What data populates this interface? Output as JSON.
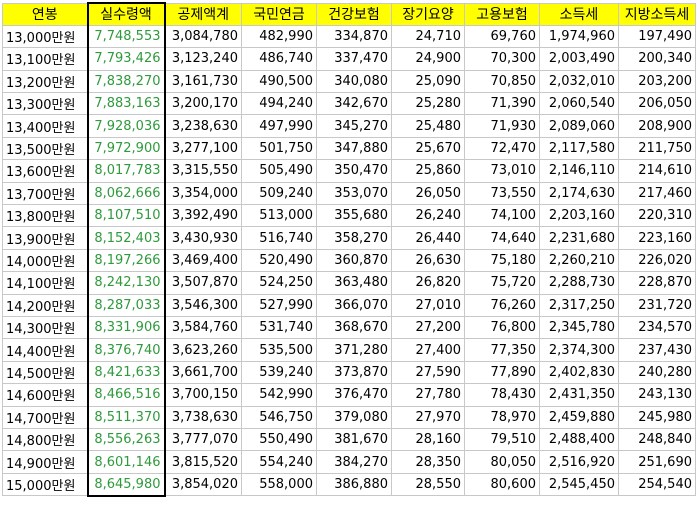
{
  "colors": {
    "header_fill": "#ffff00",
    "net_pay_text": "#2e9a3c",
    "grid_line": "#c8c8c8",
    "net_pay_border": "#000000"
  },
  "headers": [
    "연봉",
    "실수령액",
    "공제액계",
    "국민연금",
    "건강보험",
    "장기요양",
    "고용보험",
    "소득세",
    "지방소득세"
  ],
  "rows": [
    [
      "13,000만원",
      "7,748,553",
      "3,084,780",
      "482,990",
      "334,870",
      "24,710",
      "69,760",
      "1,974,960",
      "197,490"
    ],
    [
      "13,100만원",
      "7,793,426",
      "3,123,240",
      "486,740",
      "337,470",
      "24,900",
      "70,300",
      "2,003,490",
      "200,340"
    ],
    [
      "13,200만원",
      "7,838,270",
      "3,161,730",
      "490,500",
      "340,080",
      "25,090",
      "70,850",
      "2,032,010",
      "203,200"
    ],
    [
      "13,300만원",
      "7,883,163",
      "3,200,170",
      "494,240",
      "342,670",
      "25,280",
      "71,390",
      "2,060,540",
      "206,050"
    ],
    [
      "13,400만원",
      "7,928,036",
      "3,238,630",
      "497,990",
      "345,270",
      "25,480",
      "71,930",
      "2,089,060",
      "208,900"
    ],
    [
      "13,500만원",
      "7,972,900",
      "3,277,100",
      "501,750",
      "347,880",
      "25,670",
      "72,470",
      "2,117,580",
      "211,750"
    ],
    [
      "13,600만원",
      "8,017,783",
      "3,315,550",
      "505,490",
      "350,470",
      "25,860",
      "73,010",
      "2,146,110",
      "214,610"
    ],
    [
      "13,700만원",
      "8,062,666",
      "3,354,000",
      "509,240",
      "353,070",
      "26,050",
      "73,550",
      "2,174,630",
      "217,460"
    ],
    [
      "13,800만원",
      "8,107,510",
      "3,392,490",
      "513,000",
      "355,680",
      "26,240",
      "74,100",
      "2,203,160",
      "220,310"
    ],
    [
      "13,900만원",
      "8,152,403",
      "3,430,930",
      "516,740",
      "358,270",
      "26,440",
      "74,640",
      "2,231,680",
      "223,160"
    ],
    [
      "14,000만원",
      "8,197,266",
      "3,469,400",
      "520,490",
      "360,870",
      "26,630",
      "75,180",
      "2,260,210",
      "226,020"
    ],
    [
      "14,100만원",
      "8,242,130",
      "3,507,870",
      "524,250",
      "363,480",
      "26,820",
      "75,720",
      "2,288,730",
      "228,870"
    ],
    [
      "14,200만원",
      "8,287,033",
      "3,546,300",
      "527,990",
      "366,070",
      "27,010",
      "76,260",
      "2,317,250",
      "231,720"
    ],
    [
      "14,300만원",
      "8,331,906",
      "3,584,760",
      "531,740",
      "368,670",
      "27,200",
      "76,800",
      "2,345,780",
      "234,570"
    ],
    [
      "14,400만원",
      "8,376,740",
      "3,623,260",
      "535,500",
      "371,280",
      "27,400",
      "77,350",
      "2,374,300",
      "237,430"
    ],
    [
      "14,500만원",
      "8,421,633",
      "3,661,700",
      "539,240",
      "373,870",
      "27,590",
      "77,890",
      "2,402,830",
      "240,280"
    ],
    [
      "14,600만원",
      "8,466,516",
      "3,700,150",
      "542,990",
      "376,470",
      "27,780",
      "78,430",
      "2,431,350",
      "243,130"
    ],
    [
      "14,700만원",
      "8,511,370",
      "3,738,630",
      "546,750",
      "379,080",
      "27,970",
      "78,970",
      "2,459,880",
      "245,980"
    ],
    [
      "14,800만원",
      "8,556,263",
      "3,777,070",
      "550,490",
      "381,670",
      "28,160",
      "79,510",
      "2,488,400",
      "248,840"
    ],
    [
      "14,900만원",
      "8,601,146",
      "3,815,520",
      "554,240",
      "384,270",
      "28,350",
      "80,050",
      "2,516,920",
      "251,690"
    ],
    [
      "15,000만원",
      "8,645,980",
      "3,854,020",
      "558,000",
      "386,880",
      "28,550",
      "80,600",
      "2,545,450",
      "254,540"
    ]
  ]
}
